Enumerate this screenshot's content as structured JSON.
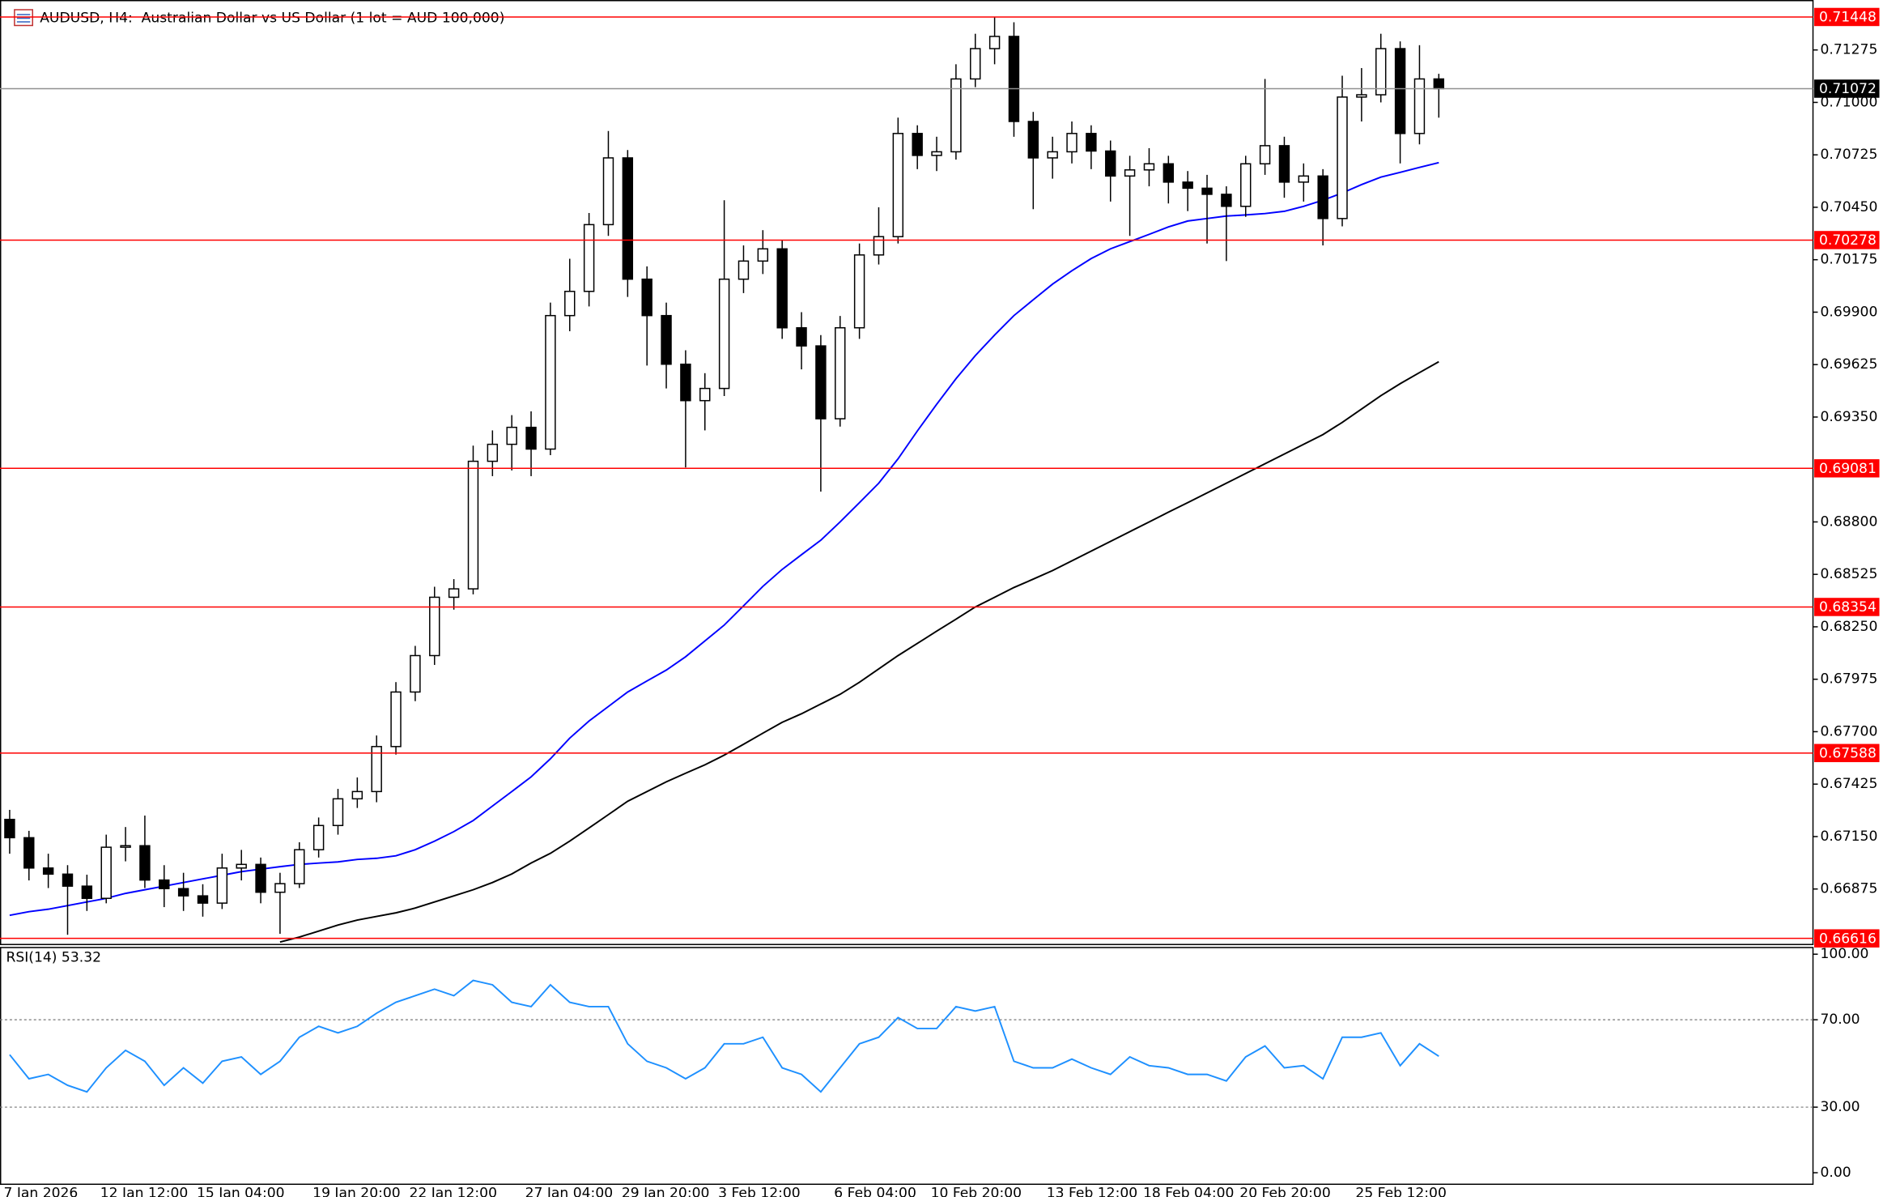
{
  "chart_data": [
    {
      "type": "candlestick",
      "title": "AUDUSD, H4:  Australian Dollar vs US Dollar (1 lot = AUD 100,000)",
      "categories": [
        "7 Jan 2026",
        null,
        null,
        null,
        null,
        "12 Jan 12:00",
        null,
        null,
        null,
        null,
        "15 Jan 04:00",
        null,
        null,
        null,
        null,
        null,
        "19 Jan 20:00",
        null,
        null,
        null,
        null,
        "22 Jan 12:00",
        null,
        null,
        null,
        null,
        null,
        "27 Jan 04:00",
        null,
        null,
        null,
        null,
        "29 Jan 20:00",
        null,
        null,
        null,
        null,
        "3 Feb 12:00",
        null,
        null,
        null,
        null,
        null,
        "6 Feb 04:00",
        null,
        null,
        null,
        null,
        "10 Feb 20:00",
        null,
        null,
        null,
        null,
        null,
        "13 Feb 12:00",
        null,
        null,
        null,
        null,
        "18 Feb 04:00",
        null,
        null,
        null,
        null,
        "20 Feb 20:00",
        null,
        null,
        null,
        null,
        null,
        "25 Feb 12:00",
        null,
        null,
        null,
        null
      ],
      "open": [
        0.6724,
        0.67144,
        0.66985,
        0.66953,
        0.6689,
        0.66826,
        0.67094,
        0.67102,
        0.66922,
        0.66877,
        0.66839,
        0.66801,
        0.66985,
        0.67004,
        0.66858,
        0.66903,
        0.67081,
        0.67208,
        0.67348,
        0.67386,
        0.67622,
        0.67908,
        0.68099,
        0.68405,
        0.68449,
        0.69118,
        0.69207,
        0.69296,
        0.69182,
        0.69882,
        0.70009,
        0.70359,
        0.70709,
        0.70073,
        0.69882,
        0.69627,
        0.69436,
        0.695,
        0.70073,
        0.70168,
        0.70232,
        0.69818,
        0.69723,
        0.69341,
        0.69818,
        0.702,
        0.70296,
        0.70837,
        0.70722,
        0.70741,
        0.71123,
        0.71282,
        0.71346,
        0.709,
        0.70709,
        0.70741,
        0.70837,
        0.70745,
        0.70614,
        0.70646,
        0.70678,
        0.70582,
        0.7055,
        0.70518,
        0.70455,
        0.70678,
        0.70773,
        0.70582,
        0.70614,
        0.70391,
        0.71028,
        0.7104,
        0.71282,
        0.70837,
        0.71123
      ],
      "high": [
        0.6729,
        0.6718,
        0.6706,
        0.67,
        0.6695,
        0.6716,
        0.672,
        0.6726,
        0.67,
        0.6696,
        0.669,
        0.6706,
        0.6708,
        0.6704,
        0.6696,
        0.6712,
        0.6725,
        0.674,
        0.6746,
        0.6768,
        0.6796,
        0.6815,
        0.6846,
        0.685,
        0.692,
        0.6928,
        0.6936,
        0.6938,
        0.6995,
        0.7018,
        0.7042,
        0.7085,
        0.7075,
        0.7014,
        0.6995,
        0.697,
        0.6958,
        0.70487,
        0.7025,
        0.7033,
        0.7028,
        0.699,
        0.6978,
        0.6988,
        0.7026,
        0.7045,
        0.7092,
        0.7088,
        0.7082,
        0.712,
        0.7136,
        0.71448,
        0.7142,
        0.7095,
        0.7082,
        0.709,
        0.7088,
        0.708,
        0.7072,
        0.7076,
        0.7072,
        0.7064,
        0.7062,
        0.7056,
        0.7072,
        0.71123,
        0.7082,
        0.7068,
        0.7065,
        0.7114,
        0.7118,
        0.7136,
        0.7132,
        0.713,
        0.7115
      ],
      "low": [
        0.6706,
        0.6692,
        0.6688,
        0.66635,
        0.6676,
        0.668,
        0.6702,
        0.6688,
        0.6678,
        0.6676,
        0.6673,
        0.6677,
        0.6692,
        0.668,
        0.6664,
        0.6688,
        0.6704,
        0.6716,
        0.673,
        0.6733,
        0.6758,
        0.6786,
        0.6805,
        0.6834,
        0.6842,
        0.6904,
        0.6907,
        0.6904,
        0.6915,
        0.698,
        0.6993,
        0.703,
        0.6998,
        0.6962,
        0.695,
        0.69086,
        0.6928,
        0.6946,
        0.7,
        0.701,
        0.6976,
        0.696,
        0.68959,
        0.693,
        0.6976,
        0.7015,
        0.7026,
        0.7065,
        0.7064,
        0.707,
        0.7108,
        0.712,
        0.7082,
        0.7044,
        0.706,
        0.7068,
        0.7065,
        0.7048,
        0.703,
        0.7056,
        0.7047,
        0.7043,
        0.7026,
        0.70168,
        0.704,
        0.7062,
        0.705,
        0.7048,
        0.7025,
        0.7035,
        0.709,
        0.71,
        0.7068,
        0.7078,
        0.7092
      ],
      "close": [
        0.67144,
        0.66985,
        0.66953,
        0.6689,
        0.66826,
        0.67094,
        0.67102,
        0.66922,
        0.66877,
        0.66839,
        0.66801,
        0.66985,
        0.67004,
        0.66858,
        0.66903,
        0.67081,
        0.67208,
        0.67348,
        0.67386,
        0.67622,
        0.67908,
        0.68099,
        0.68405,
        0.68449,
        0.69118,
        0.69207,
        0.69296,
        0.69182,
        0.69882,
        0.70009,
        0.70359,
        0.70709,
        0.70073,
        0.69882,
        0.69627,
        0.69436,
        0.695,
        0.70073,
        0.70168,
        0.70232,
        0.69818,
        0.69723,
        0.69341,
        0.69818,
        0.702,
        0.70296,
        0.70837,
        0.70722,
        0.70741,
        0.71123,
        0.71282,
        0.71346,
        0.709,
        0.70709,
        0.70741,
        0.70837,
        0.70745,
        0.70614,
        0.70646,
        0.70678,
        0.70582,
        0.7055,
        0.70518,
        0.70455,
        0.70678,
        0.70773,
        0.70582,
        0.70614,
        0.70391,
        0.71028,
        0.7104,
        0.71282,
        0.70837,
        0.71123,
        0.71072
      ],
      "lines": [
        {
          "color": "#0000ff",
          "values": [
            0.66737,
            0.66756,
            0.66769,
            0.66788,
            0.66807,
            0.66826,
            0.66852,
            0.66871,
            0.6689,
            0.66909,
            0.66928,
            0.66947,
            0.66966,
            0.66979,
            0.66992,
            0.67004,
            0.67011,
            0.67017,
            0.6703,
            0.67036,
            0.67049,
            0.67081,
            0.67126,
            0.67176,
            0.67234,
            0.6731,
            0.67386,
            0.67463,
            0.67558,
            0.67666,
            0.67756,
            0.67832,
            0.67908,
            0.67966,
            0.68023,
            0.68093,
            0.68176,
            0.68259,
            0.6836,
            0.68462,
            0.68551,
            0.68628,
            0.68704,
            0.688,
            0.68901,
            0.69003,
            0.69131,
            0.69277,
            0.69417,
            0.69551,
            0.69672,
            0.6978,
            0.69882,
            0.69965,
            0.70047,
            0.70117,
            0.70181,
            0.70232,
            0.7027,
            0.70308,
            0.70347,
            0.70378,
            0.70391,
            0.70404,
            0.7041,
            0.70417,
            0.70429,
            0.70455,
            0.70487,
            0.70525,
            0.70569,
            0.70608,
            0.70633,
            0.70659,
            0.70684
          ]
        },
        {
          "color": "#000000",
          "values": [
            null,
            null,
            null,
            null,
            null,
            null,
            null,
            null,
            null,
            null,
            null,
            null,
            null,
            null,
            0.66597,
            0.66623,
            0.66654,
            0.66686,
            0.66712,
            0.66731,
            0.6675,
            0.66775,
            0.66807,
            0.66839,
            0.66871,
            0.66909,
            0.66954,
            0.67011,
            0.67062,
            0.67126,
            0.67195,
            0.67265,
            0.67335,
            0.67386,
            0.67437,
            0.67482,
            0.67526,
            0.67577,
            0.67634,
            0.67692,
            0.67749,
            0.67794,
            0.67845,
            0.67896,
            0.67959,
            0.68029,
            0.68099,
            0.68163,
            0.68227,
            0.6829,
            0.68354,
            0.68405,
            0.68456,
            0.685,
            0.68545,
            0.68596,
            0.68647,
            0.68698,
            0.68749,
            0.688,
            0.68851,
            0.68901,
            0.68952,
            0.69003,
            0.69054,
            0.69105,
            0.69156,
            0.69207,
            0.69258,
            0.69322,
            0.69392,
            0.69462,
            0.69525,
            0.69583,
            0.6964
          ]
        }
      ],
      "levels": [
        0.71448,
        0.70278,
        0.69081,
        0.68354,
        0.67588,
        0.66616
      ],
      "level_color": "#ff0000",
      "last_price": 0.71072,
      "ylim": [
        0.66584,
        0.71537
      ],
      "yticks": [
        0.71275,
        {
          "value": 0.71,
          "label": "0.71000"
        },
        0.70725,
        {
          "value": 0.7045,
          "label": "0.70450"
        },
        0.70175,
        {
          "value": 0.699,
          "label": "0.69900"
        },
        0.69625,
        {
          "value": 0.6935,
          "label": "0.69350"
        },
        {
          "value": 0.688,
          "label": "0.68800"
        },
        0.68525,
        {
          "value": 0.6825,
          "label": "0.68250"
        },
        0.67975,
        {
          "value": 0.677,
          "label": "0.67700"
        },
        0.67425,
        {
          "value": 0.6715,
          "label": "0.67150"
        },
        0.66875
      ]
    },
    {
      "type": "line",
      "title": "RSI(14) 53.32",
      "color": "#1e90ff",
      "values": [
        54,
        43,
        45,
        40,
        37,
        48,
        56,
        51,
        40,
        48,
        41,
        51,
        53,
        45,
        51,
        62,
        67,
        64,
        67,
        73,
        78,
        81,
        84,
        81,
        88,
        86,
        78,
        76,
        86,
        78,
        76,
        76,
        59,
        51,
        48,
        43,
        48,
        59,
        59,
        62,
        48,
        45,
        37,
        48,
        59,
        62,
        71,
        66,
        66,
        76,
        74,
        76,
        51,
        48,
        48,
        52,
        48,
        45,
        53,
        49,
        48,
        45,
        45,
        42,
        53,
        58,
        48,
        49,
        43,
        62,
        62,
        64,
        49,
        59,
        53.32
      ],
      "ylim": [
        0,
        100
      ],
      "yticks": [
        {
          "value": 100,
          "label": "100.00"
        },
        {
          "value": 70,
          "label": "70.00"
        },
        {
          "value": 30,
          "label": "30.00"
        },
        {
          "value": 0,
          "label": "0.00"
        }
      ]
    }
  ]
}
